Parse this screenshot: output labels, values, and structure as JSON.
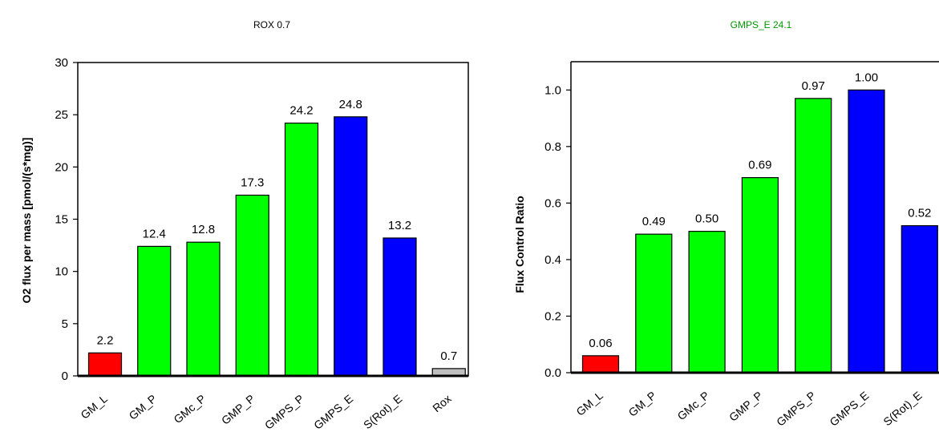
{
  "chart_data": [
    {
      "type": "bar",
      "title": "ROX 0.7",
      "title_color": "#000000",
      "ylabel": "O2 flux per mass [pmol/(s*mg)]",
      "ylim": [
        0,
        30
      ],
      "yticks": [
        "0",
        "5",
        "10",
        "15",
        "20",
        "25",
        "30"
      ],
      "grid": false,
      "categories": [
        "GM_L",
        "GM_P",
        "GMc_P",
        "GMP_P",
        "GMPS_P",
        "GMPS_E",
        "S(Rot)_E",
        "Rox"
      ],
      "values": [
        2.2,
        12.4,
        12.8,
        17.3,
        24.2,
        24.8,
        13.2,
        0.7
      ],
      "value_labels": [
        "2.2",
        "12.4",
        "12.8",
        "17.3",
        "24.2",
        "24.8",
        "13.2",
        "0.7"
      ],
      "colors": [
        "#ff0000",
        "#00ff00",
        "#00ff00",
        "#00ff00",
        "#00ff00",
        "#0000ff",
        "#0000ff",
        "#c0c0c0"
      ]
    },
    {
      "type": "bar",
      "title": "GMPS_E 24.1",
      "title_color": "#009900",
      "ylabel": "Flux Control Ratio",
      "ylim": [
        0,
        1.1
      ],
      "yticks": [
        "0.0",
        "0.2",
        "0.4",
        "0.6",
        "0.8",
        "1.0"
      ],
      "grid": false,
      "categories": [
        "GM_L",
        "GM_P",
        "GMc_P",
        "GMP_P",
        "GMPS_P",
        "GMPS_E",
        "S(Rot)_E"
      ],
      "values": [
        0.06,
        0.49,
        0.5,
        0.69,
        0.97,
        1.0,
        0.52
      ],
      "value_labels": [
        "0.06",
        "0.49",
        "0.50",
        "0.69",
        "0.97",
        "1.00",
        "0.52"
      ],
      "colors": [
        "#ff0000",
        "#00ff00",
        "#00ff00",
        "#00ff00",
        "#00ff00",
        "#0000ff",
        "#0000ff"
      ]
    }
  ]
}
